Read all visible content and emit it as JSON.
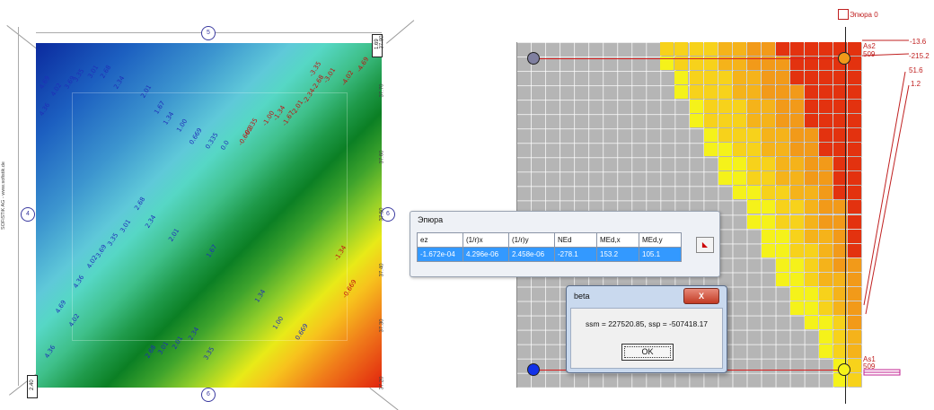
{
  "left_plot": {
    "contours_blue": [
      "4.69",
      "4.36",
      "4.02",
      "3.69",
      "3.35",
      "3.01",
      "2.68",
      "2.34",
      "2.01",
      "1.67",
      "1.34",
      "1.00",
      "0.669",
      "0.335",
      "0.0",
      "2.68",
      "2.34",
      "2.01",
      "3.01",
      "3.35",
      "3.69",
      "4.02",
      "4.36",
      "4.69",
      "1.67",
      "1.34",
      "1.00",
      "0.669",
      "2.34",
      "2.01",
      "3.01",
      "2.68",
      "3.35",
      "4.02",
      "4.36"
    ],
    "contours_red": [
      "-0.335",
      "-0.669",
      "-1.00",
      "-1.34",
      "-1.67",
      "-2.01",
      "-2.34",
      "-2.68",
      "-3.01",
      "-3.35",
      "-4.02",
      "-4.69",
      "-1.34",
      "-0.669"
    ],
    "axis_labels_right": [
      "37.80",
      "37.70",
      "37.60",
      "37.50",
      "37.40",
      "37.30",
      "37.20"
    ],
    "side_credit": "SOFiSTiK AG - www.sofistik.de",
    "marker_top": "5",
    "marker_bottom": "6",
    "marker_left": "4",
    "marker_right": "6",
    "corner_top_right": "1.69",
    "corner_bottom_left": "2.40"
  },
  "section": {
    "title": "Эпюра 0",
    "top_labels": [
      "As2",
      "509"
    ],
    "bottom_labels": [
      "As1",
      "509"
    ],
    "values": [
      "-13.6",
      "-215.2",
      "51.6",
      "1.2"
    ],
    "colors": {
      "grid_gray": "#b5b5b5",
      "yellow": "#f5f21a",
      "orange": "#f29a19",
      "red": "#e3320f"
    }
  },
  "epura_window": {
    "title": "Эпюра",
    "headers": [
      "ez",
      "(1/r)x",
      "(1/r)y",
      "NEd",
      "MEd,x",
      "MEd,y"
    ],
    "row": [
      "-1.672e-04",
      "4.296e-06",
      "2.458e-06",
      "-278.1",
      "153.2",
      "105.1"
    ],
    "button_icon": "color-picker-icon"
  },
  "beta_dialog": {
    "title": "beta",
    "close_label": "X",
    "message": "ssm = 227520.85, ssp = -507418.17",
    "ok_label": "OK"
  }
}
